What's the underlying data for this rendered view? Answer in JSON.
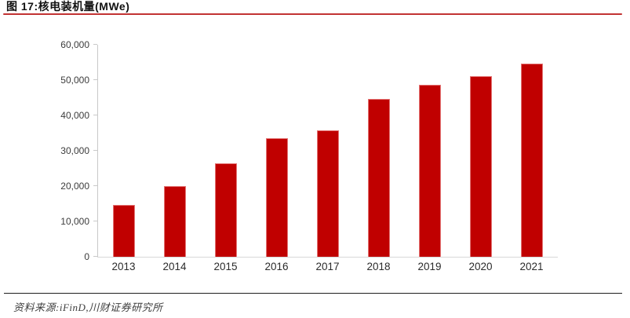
{
  "title": "图 17:核电装机量(MWe)",
  "source": "资料来源:iFinD,川财证券研究所",
  "colors": {
    "bar": "#c00000",
    "title_rule": "#c23333",
    "axis_line": "#c9c9c9",
    "footer_rule": "#1f1f1f"
  },
  "chart_data": {
    "type": "bar",
    "title": "核电装机量(MWe)",
    "categories": [
      "2013",
      "2014",
      "2015",
      "2016",
      "2017",
      "2018",
      "2019",
      "2020",
      "2021"
    ],
    "values": [
      14660,
      20100,
      26550,
      33630,
      35810,
      44650,
      48750,
      51030,
      54650
    ],
    "xlabel": "",
    "ylabel": "",
    "ylim": [
      0,
      60000
    ],
    "ytick_interval": 10000,
    "ytick_labels": [
      "0",
      "10,000",
      "20,000",
      "30,000",
      "40,000",
      "50,000",
      "60,000"
    ],
    "grid": false,
    "legend_position": "none",
    "bar_color": "#c00000"
  }
}
